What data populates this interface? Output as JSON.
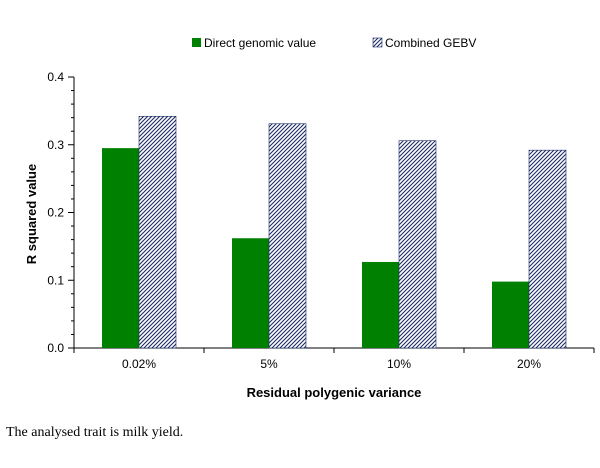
{
  "chart_data": {
    "type": "bar",
    "categories": [
      "0.02%",
      "5%",
      "10%",
      "20%"
    ],
    "series": [
      {
        "name": "Direct genomic value",
        "values": [
          0.295,
          0.162,
          0.127,
          0.098
        ],
        "color": "#008000",
        "pattern": "solid"
      },
      {
        "name": "Combined GEBV",
        "values": [
          0.342,
          0.331,
          0.306,
          0.292
        ],
        "color": "#1a2a66",
        "pattern": "hatched"
      }
    ],
    "xlabel": "Residual polygenic variance",
    "ylabel": "R squared value",
    "ylim": [
      0,
      0.4
    ],
    "yticks": [
      "0.0",
      "0.1",
      "0.2",
      "0.3",
      "0.4"
    ],
    "grid": false,
    "legend_position": "top"
  },
  "caption": "The analysed trait is milk yield."
}
